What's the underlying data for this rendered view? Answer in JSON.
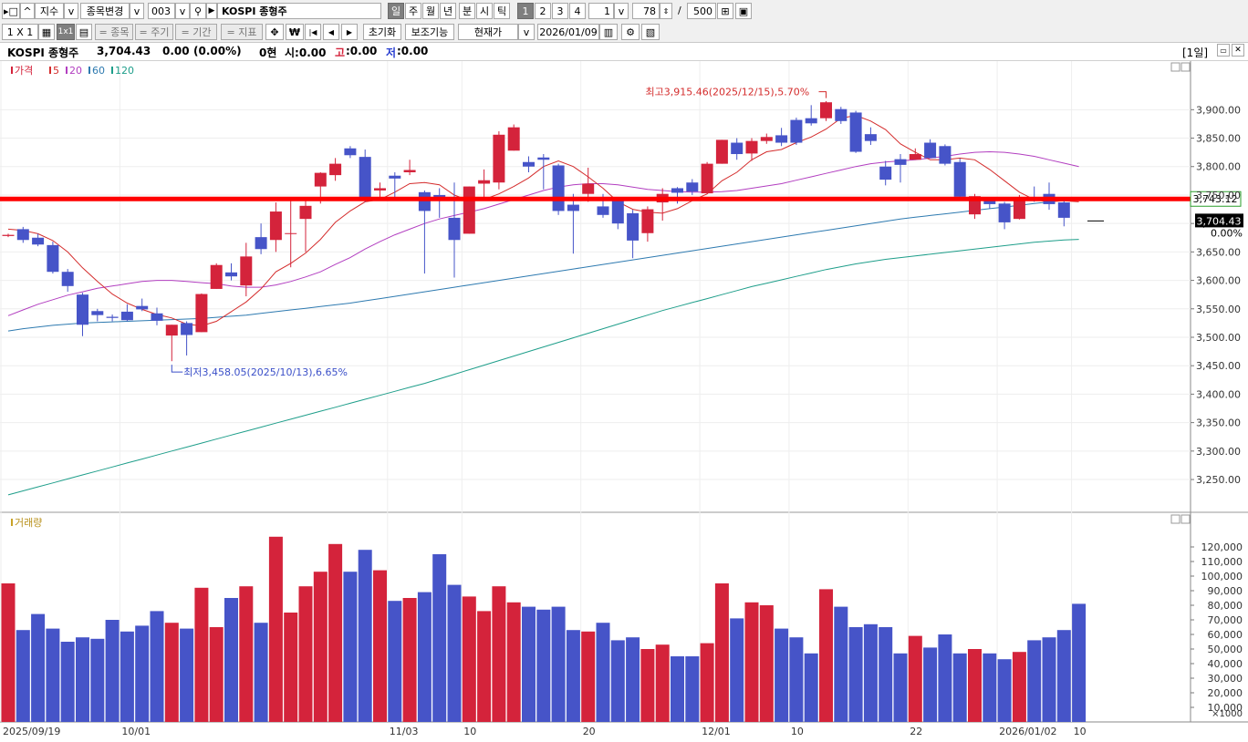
{
  "toolbar1": {
    "market_type": "지수",
    "change_item_label": "종목변경",
    "code": "003",
    "name": "KOSPI 종형주",
    "periods": [
      "일",
      "주",
      "월",
      "년",
      "분",
      "시",
      "틱"
    ],
    "numbers": [
      "1",
      "2",
      "3",
      "4"
    ],
    "interval_value": "1",
    "count_value": "78",
    "separator": "/",
    "max_value": "500"
  },
  "toolbar2": {
    "layout_label": "1 X 1",
    "layout_1x1": "1x1",
    "btn_items": "종목",
    "btn_period": "주기",
    "btn_range": "기간",
    "btn_indicator": "지표",
    "won_symbol": "₩",
    "reset_label": "초기화",
    "aux_label": "보조기능",
    "price_type": "현재가",
    "date_value": "2026/01/09"
  },
  "infobar": {
    "name": "KOSPI 종형주",
    "price": "3,704.43",
    "change": "0.00",
    "change_pct": "(0.00%)",
    "volume_label": "0현",
    "open_label": "시:0.00",
    "high_prefix": "고",
    "high_value": ":0.00",
    "low_prefix": "저",
    "low_value": ":0.00",
    "period_badge": "[1일]"
  },
  "colors": {
    "up": "#d4233b",
    "down": "#4654c8",
    "ma5": "#d42c2c",
    "ma20": "#b23ec0",
    "ma60": "#2e7ab0",
    "ma120": "#1e9e8a",
    "hline": "#ff0000"
  },
  "chart_data": {
    "type": "candlestick",
    "price_legend": [
      "가격",
      "5",
      "20",
      "60",
      "120"
    ],
    "volume_legend": "거래량",
    "y_ticks": [
      "3,900.00",
      "3,850.00",
      "3,800.00",
      "3,750.00",
      "3,700.00",
      "3,650.00",
      "3,600.00",
      "3,550.00",
      "3,500.00",
      "3,450.00",
      "3,400.00",
      "3,350.00",
      "3,300.00",
      "3,250.00"
    ],
    "y_range": [
      3210,
      3955
    ],
    "vol_ticks": [
      "120,000",
      "110,000",
      "100,000",
      "90,000",
      "80,000",
      "70,000",
      "60,000",
      "50,000",
      "40,000",
      "30,000",
      "20,000",
      "10,000"
    ],
    "vol_unit": "×1000",
    "vol_range": [
      0,
      135000
    ],
    "x_labels": [
      {
        "i": 0,
        "text": "2025/09/19"
      },
      {
        "i": 8,
        "text": "10/01"
      },
      {
        "i": 26,
        "text": "11/03"
      },
      {
        "i": 31,
        "text": "10"
      },
      {
        "i": 39,
        "text": "20"
      },
      {
        "i": 47,
        "text": "12/01"
      },
      {
        "i": 53,
        "text": "10"
      },
      {
        "i": 61,
        "text": "22"
      },
      {
        "i": 67,
        "text": "2026/01/02"
      },
      {
        "i": 72,
        "text": "10"
      }
    ],
    "candles": [
      {
        "o": 3678,
        "h": 3682,
        "l": 3676,
        "c": 3680
      },
      {
        "o": 3690,
        "h": 3694,
        "l": 3666,
        "c": 3671
      },
      {
        "o": 3675,
        "h": 3682,
        "l": 3660,
        "c": 3663
      },
      {
        "o": 3662,
        "h": 3668,
        "l": 3612,
        "c": 3615
      },
      {
        "o": 3615,
        "h": 3620,
        "l": 3580,
        "c": 3590
      },
      {
        "o": 3575,
        "h": 3578,
        "l": 3502,
        "c": 3522
      },
      {
        "o": 3546,
        "h": 3550,
        "l": 3528,
        "c": 3539
      },
      {
        "o": 3536,
        "h": 3540,
        "l": 3528,
        "c": 3534
      },
      {
        "o": 3545,
        "h": 3558,
        "l": 3528,
        "c": 3530
      },
      {
        "o": 3555,
        "h": 3568,
        "l": 3546,
        "c": 3549
      },
      {
        "o": 3542,
        "h": 3552,
        "l": 3521,
        "c": 3529
      },
      {
        "o": 3503,
        "h": 3522,
        "l": 3458,
        "c": 3522
      },
      {
        "o": 3525,
        "h": 3528,
        "l": 3468,
        "c": 3504
      },
      {
        "o": 3509,
        "h": 3577,
        "l": 3509,
        "c": 3576
      },
      {
        "o": 3585,
        "h": 3630,
        "l": 3585,
        "c": 3627
      },
      {
        "o": 3614,
        "h": 3630,
        "l": 3600,
        "c": 3607
      },
      {
        "o": 3591,
        "h": 3666,
        "l": 3572,
        "c": 3642
      },
      {
        "o": 3676,
        "h": 3700,
        "l": 3646,
        "c": 3655
      },
      {
        "o": 3671,
        "h": 3737,
        "l": 3650,
        "c": 3721
      },
      {
        "o": 3683,
        "h": 3742,
        "l": 3623,
        "c": 3683
      },
      {
        "o": 3708,
        "h": 3740,
        "l": 3650,
        "c": 3731
      },
      {
        "o": 3765,
        "h": 3790,
        "l": 3735,
        "c": 3789
      },
      {
        "o": 3785,
        "h": 3815,
        "l": 3775,
        "c": 3805
      },
      {
        "o": 3832,
        "h": 3836,
        "l": 3815,
        "c": 3820
      },
      {
        "o": 3817,
        "h": 3830,
        "l": 3738,
        "c": 3740
      },
      {
        "o": 3758,
        "h": 3772,
        "l": 3740,
        "c": 3762
      },
      {
        "o": 3784,
        "h": 3790,
        "l": 3743,
        "c": 3779
      },
      {
        "o": 3790,
        "h": 3812,
        "l": 3785,
        "c": 3794
      },
      {
        "o": 3755,
        "h": 3758,
        "l": 3612,
        "c": 3722
      },
      {
        "o": 3750,
        "h": 3762,
        "l": 3710,
        "c": 3745
      },
      {
        "o": 3710,
        "h": 3772,
        "l": 3605,
        "c": 3671
      },
      {
        "o": 3682,
        "h": 3765,
        "l": 3682,
        "c": 3765
      },
      {
        "o": 3770,
        "h": 3795,
        "l": 3740,
        "c": 3776
      },
      {
        "o": 3772,
        "h": 3862,
        "l": 3760,
        "c": 3856
      },
      {
        "o": 3828,
        "h": 3874,
        "l": 3828,
        "c": 3869
      },
      {
        "o": 3808,
        "h": 3818,
        "l": 3790,
        "c": 3800
      },
      {
        "o": 3816,
        "h": 3822,
        "l": 3760,
        "c": 3812
      },
      {
        "o": 3802,
        "h": 3805,
        "l": 3715,
        "c": 3722
      },
      {
        "o": 3733,
        "h": 3752,
        "l": 3647,
        "c": 3722
      },
      {
        "o": 3752,
        "h": 3798,
        "l": 3738,
        "c": 3770
      },
      {
        "o": 3730,
        "h": 3752,
        "l": 3710,
        "c": 3715
      },
      {
        "o": 3740,
        "h": 3744,
        "l": 3690,
        "c": 3700
      },
      {
        "o": 3718,
        "h": 3724,
        "l": 3639,
        "c": 3670
      },
      {
        "o": 3683,
        "h": 3730,
        "l": 3668,
        "c": 3725
      },
      {
        "o": 3737,
        "h": 3762,
        "l": 3705,
        "c": 3752
      },
      {
        "o": 3762,
        "h": 3764,
        "l": 3735,
        "c": 3754
      },
      {
        "o": 3772,
        "h": 3778,
        "l": 3750,
        "c": 3756
      },
      {
        "o": 3753,
        "h": 3808,
        "l": 3753,
        "c": 3805
      },
      {
        "o": 3805,
        "h": 3847,
        "l": 3805,
        "c": 3847
      },
      {
        "o": 3842,
        "h": 3850,
        "l": 3812,
        "c": 3822
      },
      {
        "o": 3823,
        "h": 3850,
        "l": 3810,
        "c": 3845
      },
      {
        "o": 3845,
        "h": 3858,
        "l": 3840,
        "c": 3852
      },
      {
        "o": 3855,
        "h": 3868,
        "l": 3836,
        "c": 3842
      },
      {
        "o": 3882,
        "h": 3886,
        "l": 3838,
        "c": 3842
      },
      {
        "o": 3885,
        "h": 3908,
        "l": 3872,
        "c": 3876
      },
      {
        "o": 3885,
        "h": 3915,
        "l": 3880,
        "c": 3913
      },
      {
        "o": 3901,
        "h": 3905,
        "l": 3875,
        "c": 3880
      },
      {
        "o": 3895,
        "h": 3898,
        "l": 3824,
        "c": 3826
      },
      {
        "o": 3857,
        "h": 3869,
        "l": 3838,
        "c": 3845
      },
      {
        "o": 3800,
        "h": 3810,
        "l": 3767,
        "c": 3777
      },
      {
        "o": 3813,
        "h": 3822,
        "l": 3772,
        "c": 3803
      },
      {
        "o": 3812,
        "h": 3832,
        "l": 3812,
        "c": 3822
      },
      {
        "o": 3842,
        "h": 3848,
        "l": 3815,
        "c": 3815
      },
      {
        "o": 3836,
        "h": 3839,
        "l": 3802,
        "c": 3805
      },
      {
        "o": 3808,
        "h": 3814,
        "l": 3745,
        "c": 3747
      },
      {
        "o": 3716,
        "h": 3752,
        "l": 3708,
        "c": 3748
      },
      {
        "o": 3742,
        "h": 3746,
        "l": 3726,
        "c": 3734
      },
      {
        "o": 3735,
        "h": 3738,
        "l": 3690,
        "c": 3702
      },
      {
        "o": 3708,
        "h": 3750,
        "l": 3707,
        "c": 3741
      },
      {
        "o": 3746,
        "h": 3765,
        "l": 3738,
        "c": 3742
      },
      {
        "o": 3752,
        "h": 3772,
        "l": 3724,
        "c": 3734
      },
      {
        "o": 3737,
        "h": 3740,
        "l": 3695,
        "c": 3710
      }
    ],
    "volumes": [
      95000,
      63000,
      74000,
      64000,
      55000,
      58000,
      57000,
      70000,
      62000,
      66000,
      76000,
      68000,
      64000,
      92000,
      65000,
      85000,
      93000,
      68000,
      127000,
      75000,
      93000,
      103000,
      122000,
      103000,
      118000,
      104000,
      83000,
      85000,
      89000,
      115000,
      94000,
      86000,
      76000,
      93000,
      82000,
      79000,
      77000,
      79000,
      63000,
      62000,
      68000,
      56000,
      58000,
      50000,
      53000,
      45000,
      45000,
      54000,
      95000,
      71000,
      82000,
      80000,
      64000,
      58000,
      47000,
      91000,
      79000,
      65000,
      67000,
      65000,
      47000,
      59000,
      51000,
      60000,
      47000,
      50000,
      47000,
      43000,
      48000,
      56000,
      58000,
      63000,
      81000
    ],
    "ma5_y": [
      3690,
      3688,
      3682,
      3670,
      3650,
      3622,
      3598,
      3576,
      3560,
      3549,
      3540,
      3534,
      3523,
      3520,
      3528,
      3545,
      3562,
      3585,
      3615,
      3630,
      3648,
      3672,
      3702,
      3722,
      3738,
      3742,
      3755,
      3770,
      3772,
      3768,
      3750,
      3740,
      3742,
      3752,
      3765,
      3780,
      3800,
      3810,
      3800,
      3782,
      3762,
      3738,
      3725,
      3720,
      3718,
      3726,
      3740,
      3752,
      3775,
      3790,
      3812,
      3826,
      3830,
      3842,
      3852,
      3866,
      3885,
      3890,
      3880,
      3865,
      3840,
      3825,
      3812,
      3812,
      3815,
      3812,
      3795,
      3775,
      3755,
      3742,
      3738,
      3740,
      3738
    ],
    "ma20_y": [
      3538,
      3548,
      3558,
      3566,
      3574,
      3580,
      3586,
      3590,
      3594,
      3598,
      3600,
      3600,
      3598,
      3596,
      3594,
      3590,
      3588,
      3588,
      3592,
      3598,
      3606,
      3615,
      3628,
      3640,
      3655,
      3668,
      3680,
      3690,
      3700,
      3708,
      3714,
      3720,
      3726,
      3734,
      3742,
      3750,
      3758,
      3764,
      3768,
      3770,
      3770,
      3768,
      3764,
      3760,
      3758,
      3756,
      3755,
      3755,
      3756,
      3758,
      3762,
      3766,
      3770,
      3776,
      3782,
      3788,
      3794,
      3800,
      3805,
      3808,
      3810,
      3812,
      3815,
      3818,
      3822,
      3825,
      3826,
      3825,
      3822,
      3818,
      3812,
      3806,
      3800
    ],
    "ma60_y": [
      3511,
      3515,
      3518,
      3521,
      3523,
      3525,
      3526,
      3527,
      3528,
      3529,
      3530,
      3531,
      3532,
      3533,
      3535,
      3537,
      3539,
      3542,
      3545,
      3548,
      3551,
      3554,
      3557,
      3560,
      3564,
      3568,
      3572,
      3576,
      3580,
      3584,
      3588,
      3592,
      3596,
      3600,
      3604,
      3608,
      3612,
      3616,
      3620,
      3624,
      3628,
      3632,
      3636,
      3640,
      3644,
      3648,
      3652,
      3656,
      3660,
      3664,
      3668,
      3672,
      3676,
      3680,
      3684,
      3688,
      3692,
      3696,
      3700,
      3704,
      3708,
      3711,
      3714,
      3717,
      3720,
      3723,
      3726,
      3729,
      3732,
      3735,
      3738,
      3741,
      3745
    ],
    "ma120_y": [
      3223,
      3230,
      3237,
      3244,
      3251,
      3258,
      3265,
      3272,
      3279,
      3286,
      3293,
      3300,
      3307,
      3314,
      3321,
      3328,
      3335,
      3342,
      3349,
      3356,
      3363,
      3370,
      3377,
      3384,
      3391,
      3398,
      3405,
      3412,
      3419,
      3427,
      3435,
      3443,
      3451,
      3459,
      3467,
      3475,
      3483,
      3491,
      3499,
      3507,
      3515,
      3523,
      3531,
      3539,
      3547,
      3554,
      3561,
      3568,
      3575,
      3582,
      3589,
      3595,
      3601,
      3607,
      3613,
      3619,
      3624,
      3629,
      3633,
      3637,
      3640,
      3643,
      3646,
      3649,
      3652,
      3655,
      3658,
      3661,
      3664,
      3667,
      3669,
      3671,
      3672
    ],
    "hline_value": 3743.12,
    "hline_label": "3,743.12",
    "current_label": "3,704.43",
    "current_value": 3704.43,
    "pct_label": "0.00%",
    "annotations": [
      {
        "text": "최고3,915.46(2025/12/15),5.70%",
        "price": 3915.46,
        "i": 55
      },
      {
        "text": "최저3,458.05(2025/10/13),6.65%",
        "price": 3458.05,
        "i": 11
      }
    ]
  }
}
